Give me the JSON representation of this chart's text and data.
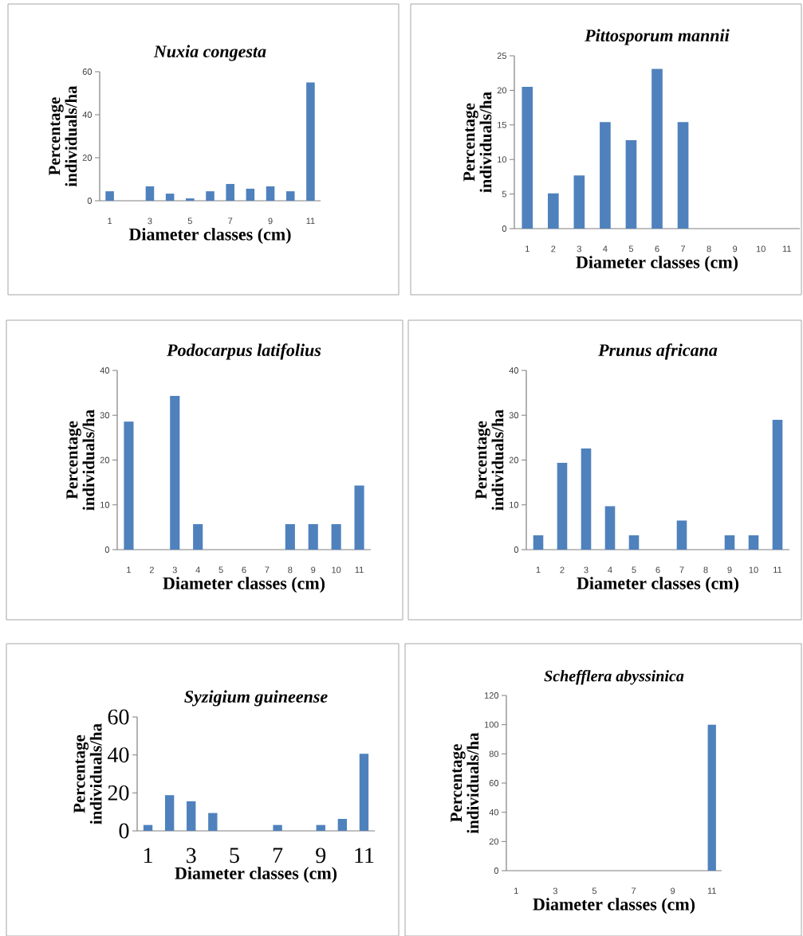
{
  "chart_data": [
    {
      "type": "bar",
      "title": "Nuxia congesta",
      "xlabel": "Diameter classes (cm)",
      "ylabel": "Percentage individuals/ha",
      "categories": [
        "1",
        null,
        "3",
        null,
        "5",
        null,
        "7",
        null,
        "9",
        null,
        "11"
      ],
      "values": [
        4.4,
        0,
        6.7,
        3.3,
        1.1,
        4.4,
        7.8,
        5.6,
        6.7,
        4.4,
        55
      ],
      "color": "#4f81bd",
      "ylim": [
        0,
        60
      ],
      "yticks": [
        0,
        20,
        40,
        60
      ]
    },
    {
      "type": "bar",
      "title": "Pittosporum mannii",
      "xlabel": "Diameter classes (cm)",
      "ylabel": "Percentage individuals/ha",
      "categories": [
        "1",
        "2",
        "3",
        "4",
        "5",
        "6",
        "7",
        "8",
        "9",
        "10",
        "11"
      ],
      "values": [
        20.5,
        5.1,
        7.7,
        15.4,
        12.8,
        23.1,
        15.4,
        0,
        0,
        0,
        0
      ],
      "color": "#4f81bd",
      "ylim": [
        0,
        25
      ],
      "yticks": [
        0,
        5,
        10,
        15,
        20,
        25
      ]
    },
    {
      "type": "bar",
      "title": "Podocarpus latifolius",
      "xlabel": "Diameter classes (cm)",
      "ylabel": "Percentage individuals/ha",
      "categories": [
        "1",
        "2",
        "3",
        "4",
        "5",
        "6",
        "7",
        "8",
        "9",
        "10",
        "11"
      ],
      "values": [
        28.6,
        0,
        34.3,
        5.7,
        0,
        0,
        0,
        5.7,
        5.7,
        5.7,
        14.3
      ],
      "color": "#4f81bd",
      "ylim": [
        0,
        40
      ],
      "yticks": [
        0,
        10,
        20,
        30,
        40
      ]
    },
    {
      "type": "bar",
      "title": "Prunus africana",
      "xlabel": "Diameter classes (cm)",
      "ylabel": "Percentage individuals/ha",
      "categories": [
        "1",
        "2",
        "3",
        "4",
        "5",
        "6",
        "7",
        "8",
        "9",
        "10",
        "11"
      ],
      "values": [
        3.2,
        19.4,
        22.6,
        9.7,
        3.2,
        0,
        6.5,
        0,
        3.2,
        3.2,
        29
      ],
      "color": "#4f81bd",
      "ylim": [
        0,
        40
      ],
      "yticks": [
        0,
        10,
        20,
        30,
        40
      ]
    },
    {
      "type": "bar",
      "title": "Syzigium guineense",
      "xlabel": "Diameter classes (cm)",
      "ylabel": "Percentage individuals/ha",
      "categories": [
        "1",
        null,
        "3",
        null,
        "5",
        null,
        "7",
        null,
        "9",
        null,
        "11"
      ],
      "values": [
        3.1,
        18.8,
        15.6,
        9.4,
        0,
        0,
        3.1,
        0,
        3.1,
        6.3,
        40.6
      ],
      "color": "#4f81bd",
      "ylim": [
        0,
        60
      ],
      "yticks": [
        0,
        20,
        40,
        60
      ]
    },
    {
      "type": "bar",
      "title": "Schefflera abyssinica",
      "xlabel": "Diameter classes (cm)",
      "ylabel": "Percentage individuals/ha",
      "categories": [
        "1",
        null,
        "3",
        null,
        "5",
        null,
        "7",
        null,
        "9",
        null,
        "11"
      ],
      "values": [
        0,
        0,
        0,
        0,
        0,
        0,
        0,
        0,
        0,
        0,
        100
      ],
      "color": "#4f81bd",
      "ylim": [
        0,
        120
      ],
      "yticks": [
        0,
        20,
        40,
        60,
        80,
        100,
        120
      ]
    }
  ]
}
